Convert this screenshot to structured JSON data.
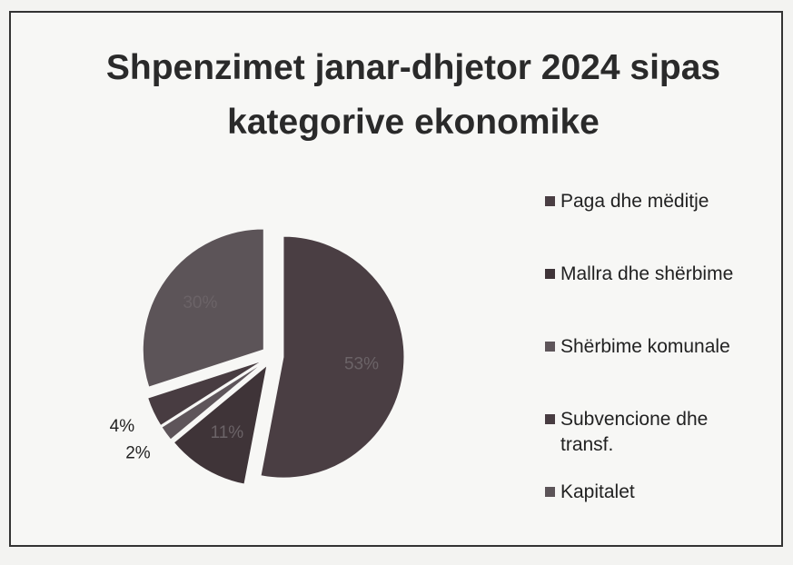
{
  "chart_data": {
    "type": "pie",
    "title": "Shpenzimet janar-dhjetor 2024 sipas kategorive ekonomike",
    "categories": [
      "Paga dhe mëditje",
      "Mallra dhe shërbime",
      "Shërbime komunale",
      "Subvencione dhe transf.",
      "Kapitalet"
    ],
    "values": [
      53,
      11,
      2,
      4,
      30
    ],
    "value_labels": [
      "53%",
      "11%",
      "2%",
      "4%",
      "30%"
    ],
    "colors": [
      "#4a3e43",
      "#3f3438",
      "#5e555a",
      "#483c41",
      "#5c5458"
    ],
    "legend": "right"
  }
}
